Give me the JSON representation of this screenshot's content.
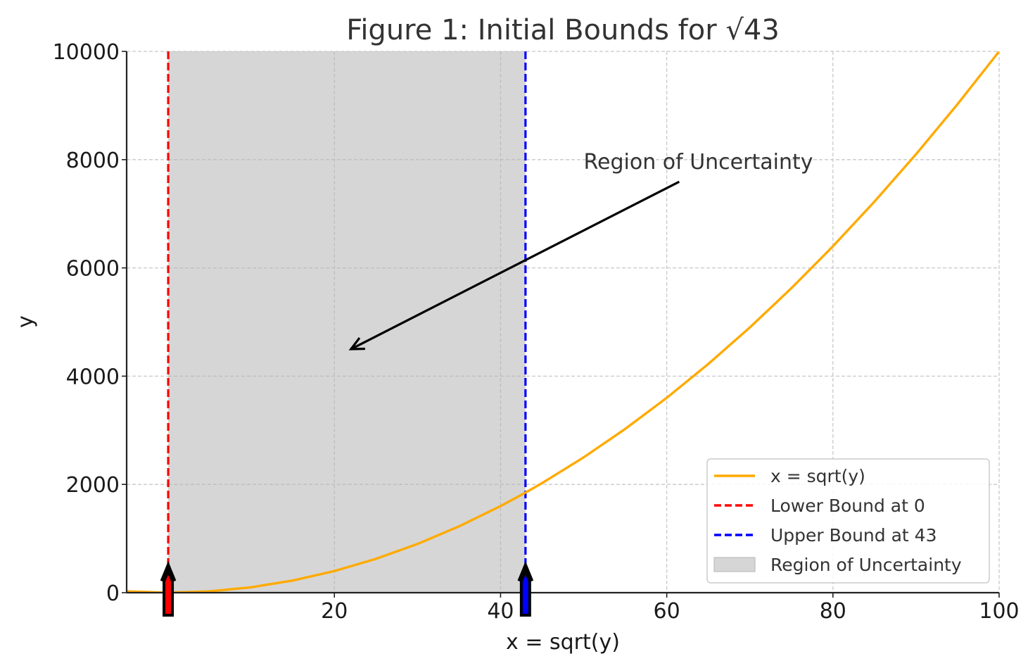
{
  "chart_data": {
    "type": "line",
    "title": "Figure 1: Initial Bounds for √43",
    "xlabel": "x = sqrt(y)",
    "ylabel": "y",
    "xlim": [
      -5,
      100
    ],
    "ylim": [
      0,
      10000
    ],
    "x_ticks": [
      20,
      40,
      60,
      80,
      100
    ],
    "y_ticks": [
      0,
      2000,
      4000,
      6000,
      8000,
      10000
    ],
    "grid": true,
    "legend_position": "lower-right",
    "series": [
      {
        "name": "x = sqrt(y)",
        "color": "#ffaa00",
        "style": "solid",
        "x": [
          -5,
          0,
          5,
          10,
          15,
          20,
          25,
          30,
          35,
          40,
          43,
          45,
          50,
          55,
          60,
          65,
          70,
          75,
          80,
          85,
          90,
          95,
          100
        ],
        "y": [
          25,
          0,
          25,
          100,
          225,
          400,
          625,
          900,
          1225,
          1600,
          1849,
          2025,
          2500,
          3025,
          3600,
          4225,
          4900,
          5625,
          6400,
          7225,
          8100,
          9025,
          10000
        ]
      }
    ],
    "vertical_lines": [
      {
        "name": "Lower Bound at 0",
        "x": 0,
        "color": "#ff0000",
        "style": "dashed"
      },
      {
        "name": "Upper Bound at 43",
        "x": 43,
        "color": "#0000ff",
        "style": "dashed"
      }
    ],
    "shaded_region": {
      "name": "Region of Uncertainty",
      "x_start": 0,
      "x_end": 43,
      "color": "#d6d6d6"
    },
    "annotation": {
      "text": "Region of Uncertainty",
      "text_x": 50,
      "text_y": 7800,
      "arrow_from_x": 61.5,
      "arrow_from_y": 7800,
      "arrow_to_x": 22,
      "arrow_to_y": 4500
    },
    "bound_arrows": [
      {
        "x": 0,
        "color": "#ff0000",
        "y_tip": 500
      },
      {
        "x": 43,
        "color": "#0000ff",
        "y_tip": 500
      }
    ]
  }
}
